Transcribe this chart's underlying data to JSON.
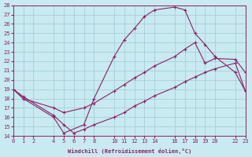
{
  "xlabel": "Windchill (Refroidissement éolien,°C)",
  "bg_color": "#c8eaf0",
  "grid_color": "#a0c8d8",
  "line_color": "#882266",
  "xlim": [
    0,
    23
  ],
  "ylim": [
    14,
    28
  ],
  "xticks": [
    0,
    1,
    2,
    4,
    5,
    6,
    7,
    8,
    10,
    11,
    12,
    13,
    14,
    16,
    17,
    18,
    19,
    20,
    22,
    23
  ],
  "yticks": [
    14,
    15,
    16,
    17,
    18,
    19,
    20,
    21,
    22,
    23,
    24,
    25,
    26,
    27,
    28
  ],
  "curve1_x": [
    0,
    1,
    4,
    5,
    7,
    8,
    10,
    11,
    12,
    13,
    14,
    16,
    17,
    18,
    19,
    20,
    22,
    23
  ],
  "curve1_y": [
    19,
    18,
    16,
    14.3,
    15.2,
    18.0,
    22.5,
    24.3,
    25.5,
    26.8,
    27.5,
    27.8,
    27.5,
    25.0,
    23.8,
    22.5,
    20.8,
    18.8
  ],
  "curve2_x": [
    0,
    1,
    4,
    5,
    7,
    8,
    10,
    11,
    12,
    13,
    14,
    16,
    17,
    18,
    19,
    20,
    22,
    23
  ],
  "curve2_y": [
    19,
    18,
    17,
    16.5,
    17.0,
    17.5,
    18.8,
    19.5,
    20.2,
    20.8,
    21.5,
    22.5,
    23.3,
    24.0,
    21.8,
    22.3,
    22.2,
    20.8
  ],
  "curve3_x": [
    0,
    1,
    4,
    5,
    6,
    7,
    8,
    10,
    11,
    12,
    13,
    14,
    16,
    17,
    18,
    19,
    20,
    22,
    23
  ],
  "curve3_y": [
    19,
    18.2,
    16.2,
    15.2,
    14.3,
    14.7,
    15.2,
    16.0,
    16.5,
    17.2,
    17.7,
    18.3,
    19.2,
    19.8,
    20.3,
    20.8,
    21.2,
    21.8,
    18.8
  ]
}
